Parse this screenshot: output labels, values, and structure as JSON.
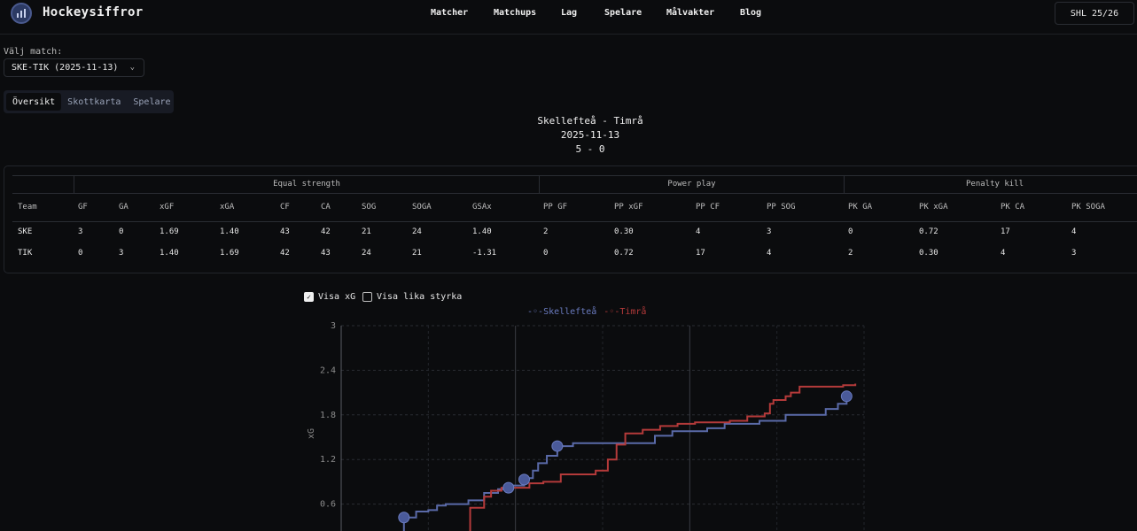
{
  "header": {
    "brand": "Hockeysiffror",
    "nav": [
      "Matcher",
      "Matchups",
      "Lag",
      "Spelare",
      "Målvakter",
      "Blog"
    ],
    "season": "SHL 25/26"
  },
  "selector": {
    "label": "Välj match:",
    "value": "SKE-TIK (2025-11-13)"
  },
  "tabs": [
    "Översikt",
    "Skottkarta",
    "Spelare"
  ],
  "match": {
    "teams": "Skellefteå - Timrå",
    "date": "2025-11-13",
    "score": "5 - 0"
  },
  "stats": {
    "groups": [
      "Equal strength",
      "Power play",
      "Penalty kill"
    ],
    "columns": [
      "Team",
      "GF",
      "GA",
      "xGF",
      "xGA",
      "CF",
      "CA",
      "SOG",
      "SOGA",
      "GSAx",
      "PP GF",
      "PP xGF",
      "PP CF",
      "PP SOG",
      "PK GA",
      "PK xGA",
      "PK CA",
      "PK SOGA"
    ],
    "rows": [
      [
        "SKE",
        "3",
        "0",
        "1.69",
        "1.40",
        "43",
        "42",
        "21",
        "24",
        "1.40",
        "2",
        "0.30",
        "4",
        "3",
        "0",
        "0.72",
        "17",
        "4"
      ],
      [
        "TIK",
        "0",
        "3",
        "1.40",
        "1.69",
        "42",
        "43",
        "24",
        "21",
        "-1.31",
        "0",
        "0.72",
        "17",
        "4",
        "2",
        "0.30",
        "4",
        "3"
      ]
    ]
  },
  "toggles": {
    "show_xg": "Visa xG",
    "show_even": "Visa lika styrka"
  },
  "chart_data": {
    "type": "line",
    "ylabel": "xG",
    "yticks": [
      "0.6",
      "1.2",
      "1.8",
      "2.4",
      "3"
    ],
    "ylim": [
      0,
      3
    ],
    "series": [
      {
        "name": "Skellefteå",
        "color": "#5a6aa8",
        "points": [
          [
            0.0,
            0.0
          ],
          [
            2.5,
            0.02
          ],
          [
            3.6,
            0.42
          ],
          [
            4.3,
            0.5
          ],
          [
            5.0,
            0.52
          ],
          [
            5.5,
            0.58
          ],
          [
            6.0,
            0.6
          ],
          [
            7.3,
            0.65
          ],
          [
            8.2,
            0.75
          ],
          [
            9.0,
            0.8
          ],
          [
            9.6,
            0.85
          ],
          [
            10.5,
            0.95
          ],
          [
            11.0,
            1.05
          ],
          [
            11.3,
            1.15
          ],
          [
            11.8,
            1.25
          ],
          [
            12.4,
            1.38
          ],
          [
            13.3,
            1.42
          ],
          [
            17.5,
            1.42
          ],
          [
            18.0,
            1.52
          ],
          [
            19.0,
            1.58
          ],
          [
            21.0,
            1.62
          ],
          [
            22.0,
            1.68
          ],
          [
            24.0,
            1.72
          ],
          [
            25.5,
            1.8
          ],
          [
            27.8,
            1.88
          ],
          [
            28.5,
            1.95
          ],
          [
            29.0,
            2.1
          ]
        ]
      },
      {
        "name": "Timrå",
        "color": "#b43a3a",
        "points": [
          [
            0.0,
            0.0
          ],
          [
            4.5,
            0.02
          ],
          [
            5.5,
            0.08
          ],
          [
            6.4,
            0.2
          ],
          [
            7.4,
            0.55
          ],
          [
            8.2,
            0.7
          ],
          [
            8.6,
            0.78
          ],
          [
            9.2,
            0.82
          ],
          [
            10.2,
            0.82
          ],
          [
            10.8,
            0.88
          ],
          [
            11.6,
            0.9
          ],
          [
            12.6,
            1.0
          ],
          [
            14.6,
            1.05
          ],
          [
            15.3,
            1.2
          ],
          [
            15.8,
            1.4
          ],
          [
            16.3,
            1.55
          ],
          [
            17.3,
            1.6
          ],
          [
            18.3,
            1.65
          ],
          [
            19.3,
            1.68
          ],
          [
            20.3,
            1.7
          ],
          [
            22.3,
            1.72
          ],
          [
            23.3,
            1.78
          ],
          [
            24.3,
            1.82
          ],
          [
            24.6,
            1.95
          ],
          [
            24.8,
            2.0
          ],
          [
            25.5,
            2.05
          ],
          [
            25.8,
            2.1
          ],
          [
            26.3,
            2.18
          ],
          [
            28.8,
            2.2
          ],
          [
            29.5,
            2.22
          ]
        ]
      }
    ],
    "markers": [
      {
        "series": "Skellefteå",
        "x": 3.6,
        "y": 0.42
      },
      {
        "series": "Skellefteå",
        "x": 9.6,
        "y": 0.82
      },
      {
        "series": "Skellefteå",
        "x": 10.5,
        "y": 0.93
      },
      {
        "series": "Skellefteå",
        "x": 12.4,
        "y": 1.38
      },
      {
        "series": "Skellefteå",
        "x": 29.0,
        "y": 2.05
      }
    ],
    "xlim": [
      0,
      30
    ]
  }
}
